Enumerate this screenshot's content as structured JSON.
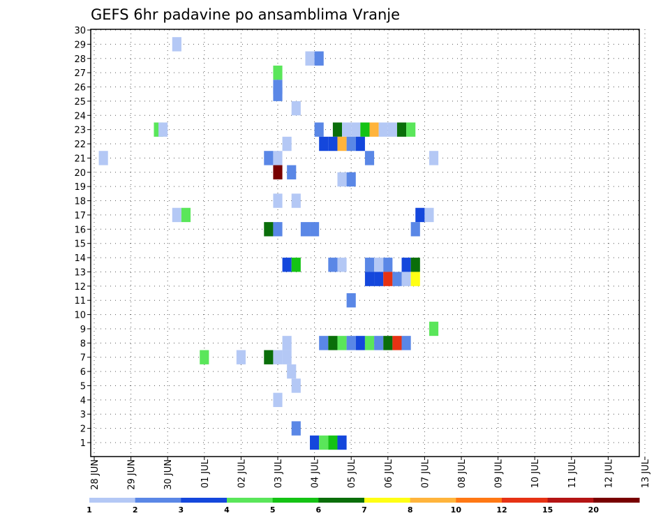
{
  "chart_data": {
    "type": "heatmap",
    "title": "GEFS 6hr padavine po ansamblima Vranje",
    "x_tick_labels": [
      "28 JUN",
      "29 JUN",
      "30 JUN",
      "01 JUL",
      "02 JUL",
      "03 JUL",
      "04 JUL",
      "05 JUL",
      "06 JUL",
      "07 JUL",
      "08 JUL",
      "09 JUL",
      "10 JUL",
      "11 JUL",
      "12 JUL",
      "13 JUL"
    ],
    "y_tick_labels": [
      "1",
      "2",
      "3",
      "4",
      "5",
      "6",
      "7",
      "8",
      "9",
      "10",
      "11",
      "12",
      "13",
      "14",
      "15",
      "16",
      "17",
      "18",
      "19",
      "20",
      "21",
      "22",
      "23",
      "24",
      "25",
      "26",
      "27",
      "28",
      "29",
      "30"
    ],
    "xlim_steps": [
      0,
      60
    ],
    "ylim_members": [
      1,
      30
    ],
    "grid": true,
    "colorbar": {
      "labels": [
        "1",
        "2",
        "3",
        "4",
        "5",
        "6",
        "7",
        "8",
        "10",
        "12",
        "15",
        "20"
      ],
      "colors": [
        "#b4c8f5",
        "#5a87e6",
        "#1447dc",
        "#5ae65a",
        "#14c314",
        "#0a6e0a",
        "#ffff14",
        "#ffb43c",
        "#ff7814",
        "#e63214",
        "#b41414",
        "#780000"
      ]
    },
    "cells": [
      {
        "step": 9,
        "member": 29,
        "c": 0
      },
      {
        "step": 23.5,
        "member": 28,
        "c": 0
      },
      {
        "step": 24.5,
        "member": 28,
        "c": 1
      },
      {
        "step": 20,
        "member": 27,
        "c": 3
      },
      {
        "step": 20,
        "member": 26,
        "c": 1
      },
      {
        "step": 20,
        "member": 25.5,
        "c": 1
      },
      {
        "step": 22,
        "member": 24.5,
        "c": 0
      },
      {
        "step": 7,
        "member": 23,
        "c": 3
      },
      {
        "step": 7.5,
        "member": 23,
        "c": 0
      },
      {
        "step": 24.5,
        "member": 23,
        "c": 1
      },
      {
        "step": 26.5,
        "member": 23,
        "c": 5
      },
      {
        "step": 27.5,
        "member": 23,
        "c": 0
      },
      {
        "step": 28.5,
        "member": 23,
        "c": 0
      },
      {
        "step": 29.5,
        "member": 23,
        "c": 4
      },
      {
        "step": 30.5,
        "member": 23,
        "c": 7
      },
      {
        "step": 31.5,
        "member": 23,
        "c": 0
      },
      {
        "step": 32.5,
        "member": 23,
        "c": 0
      },
      {
        "step": 33.5,
        "member": 23,
        "c": 5
      },
      {
        "step": 34.5,
        "member": 23,
        "c": 3
      },
      {
        "step": 21,
        "member": 22,
        "c": 0
      },
      {
        "step": 25,
        "member": 22,
        "c": 2
      },
      {
        "step": 26,
        "member": 22,
        "c": 2
      },
      {
        "step": 27,
        "member": 22,
        "c": 7
      },
      {
        "step": 28,
        "member": 22,
        "c": 1
      },
      {
        "step": 29,
        "member": 22,
        "c": 2
      },
      {
        "step": 1,
        "member": 21,
        "c": 0
      },
      {
        "step": 19,
        "member": 21,
        "c": 1
      },
      {
        "step": 20,
        "member": 21,
        "c": 0
      },
      {
        "step": 30,
        "member": 21,
        "c": 1
      },
      {
        "step": 37,
        "member": 21,
        "c": 0
      },
      {
        "step": 20,
        "member": 20,
        "c": 11
      },
      {
        "step": 21.5,
        "member": 20,
        "c": 1
      },
      {
        "step": 27,
        "member": 19.5,
        "c": 0
      },
      {
        "step": 28,
        "member": 19.5,
        "c": 1
      },
      {
        "step": 20,
        "member": 18,
        "c": 0
      },
      {
        "step": 22,
        "member": 18,
        "c": 0
      },
      {
        "step": 9,
        "member": 17,
        "c": 0
      },
      {
        "step": 10,
        "member": 17,
        "c": 3
      },
      {
        "step": 35.5,
        "member": 17,
        "c": 2
      },
      {
        "step": 36.5,
        "member": 17,
        "c": 0
      },
      {
        "step": 19,
        "member": 16,
        "c": 5
      },
      {
        "step": 20,
        "member": 16,
        "c": 1
      },
      {
        "step": 23,
        "member": 16,
        "c": 1
      },
      {
        "step": 24,
        "member": 16,
        "c": 1
      },
      {
        "step": 35,
        "member": 16,
        "c": 1
      },
      {
        "step": 21,
        "member": 13.5,
        "c": 2
      },
      {
        "step": 22,
        "member": 13.5,
        "c": 4
      },
      {
        "step": 26,
        "member": 13.5,
        "c": 1
      },
      {
        "step": 27,
        "member": 13.5,
        "c": 0
      },
      {
        "step": 30,
        "member": 13.5,
        "c": 1
      },
      {
        "step": 31,
        "member": 13.5,
        "c": 0
      },
      {
        "step": 32,
        "member": 13.5,
        "c": 1
      },
      {
        "step": 34,
        "member": 13.5,
        "c": 2
      },
      {
        "step": 35,
        "member": 13.5,
        "c": 5
      },
      {
        "step": 30,
        "member": 12.5,
        "c": 2
      },
      {
        "step": 31,
        "member": 12.5,
        "c": 2
      },
      {
        "step": 32,
        "member": 12.5,
        "c": 9
      },
      {
        "step": 33,
        "member": 12.5,
        "c": 1
      },
      {
        "step": 34,
        "member": 12.5,
        "c": 0
      },
      {
        "step": 35,
        "member": 12.5,
        "c": 6
      },
      {
        "step": 28,
        "member": 11,
        "c": 1
      },
      {
        "step": 37,
        "member": 9,
        "c": 3
      },
      {
        "step": 21,
        "member": 8,
        "c": 0
      },
      {
        "step": 25,
        "member": 8,
        "c": 1
      },
      {
        "step": 26,
        "member": 8,
        "c": 5
      },
      {
        "step": 27,
        "member": 8,
        "c": 3
      },
      {
        "step": 28,
        "member": 8,
        "c": 1
      },
      {
        "step": 29,
        "member": 8,
        "c": 2
      },
      {
        "step": 30,
        "member": 8,
        "c": 3
      },
      {
        "step": 31,
        "member": 8,
        "c": 1
      },
      {
        "step": 32,
        "member": 8,
        "c": 5
      },
      {
        "step": 33,
        "member": 8,
        "c": 9
      },
      {
        "step": 34,
        "member": 8,
        "c": 1
      },
      {
        "step": 12,
        "member": 7,
        "c": 3
      },
      {
        "step": 16,
        "member": 7,
        "c": 0
      },
      {
        "step": 19,
        "member": 7,
        "c": 5
      },
      {
        "step": 20,
        "member": 7,
        "c": 0
      },
      {
        "step": 21,
        "member": 7,
        "c": 0
      },
      {
        "step": 21.5,
        "member": 6,
        "c": 0
      },
      {
        "step": 22,
        "member": 5,
        "c": 0
      },
      {
        "step": 20,
        "member": 4,
        "c": 0
      },
      {
        "step": 22,
        "member": 2,
        "c": 1
      },
      {
        "step": 24,
        "member": 1,
        "c": 2
      },
      {
        "step": 25,
        "member": 1,
        "c": 3
      },
      {
        "step": 26,
        "member": 1,
        "c": 4
      },
      {
        "step": 27,
        "member": 1,
        "c": 2
      }
    ]
  }
}
